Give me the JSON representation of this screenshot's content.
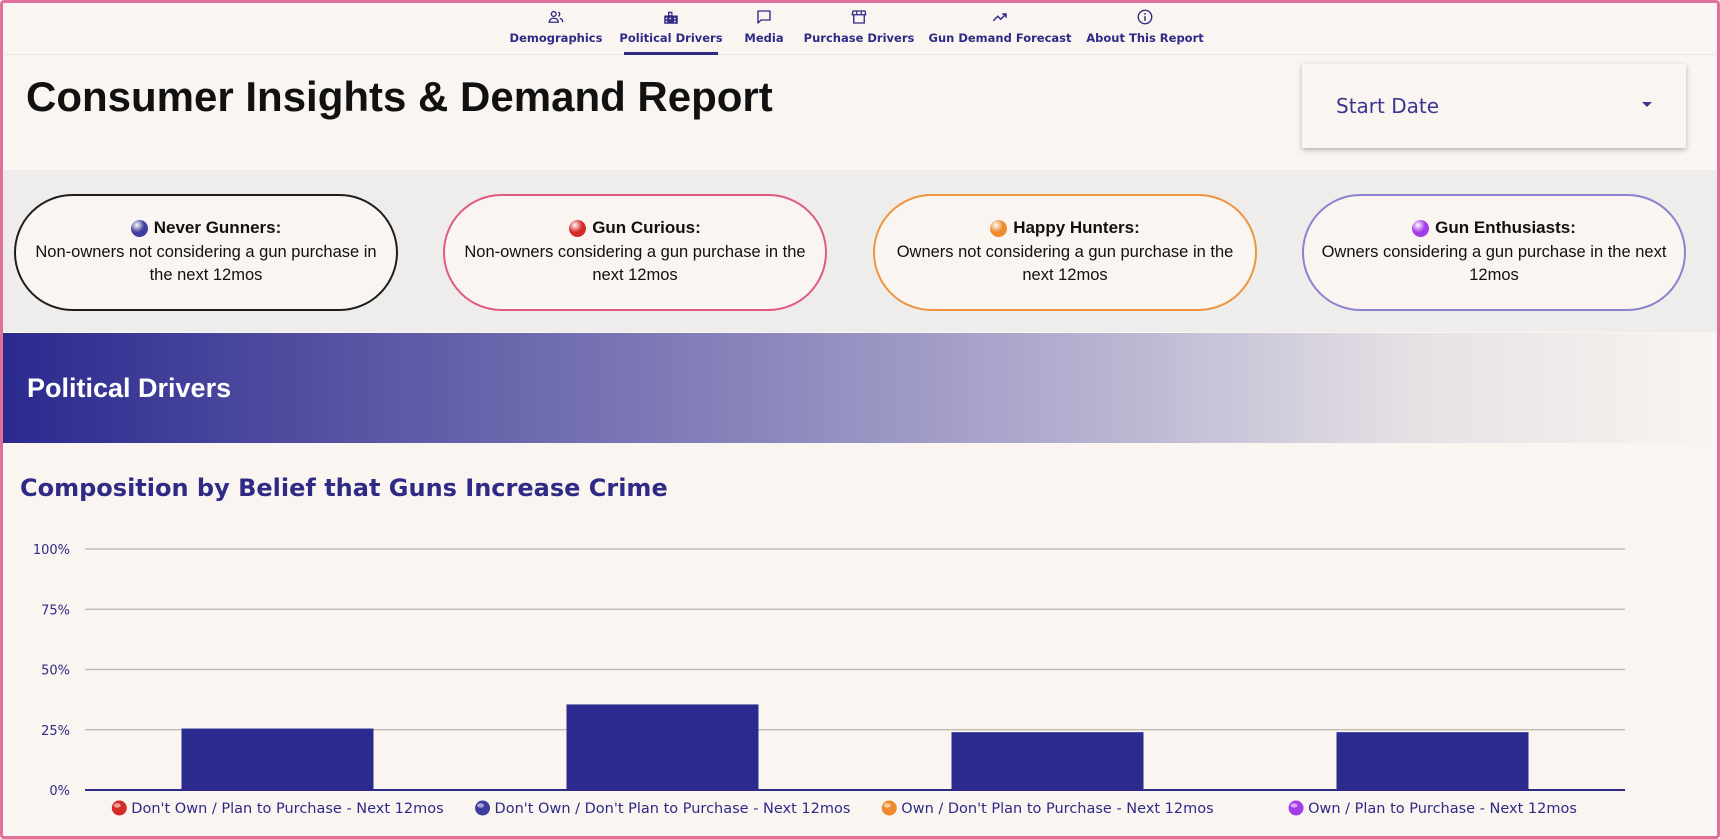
{
  "nav": {
    "tabs": [
      {
        "label": "Demographics",
        "icon": "people-icon",
        "active": false
      },
      {
        "label": "Political Drivers",
        "icon": "building-icon",
        "active": true
      },
      {
        "label": "Media",
        "icon": "chat-icon",
        "active": false
      },
      {
        "label": "Purchase Drivers",
        "icon": "storefront-icon",
        "active": false
      },
      {
        "label": "Gun Demand Forecast",
        "icon": "trending-up-icon",
        "active": false
      },
      {
        "label": "About This Report",
        "icon": "info-icon",
        "active": false
      }
    ],
    "accent": "#2e2a86"
  },
  "header": {
    "title": "Consumer Insights & Demand Report",
    "start_date_label": "Start Date"
  },
  "segments": [
    {
      "name": "Never Gunners:",
      "desc": "Non-owners not considering a gun purchase in the next 12mos",
      "color": "#3f3da0",
      "border": "#1e1e1e"
    },
    {
      "name": "Gun Curious:",
      "desc": "Non-owners considering a gun purchase in the next 12mos",
      "color": "#d42a2a",
      "border": "#e05a86"
    },
    {
      "name": "Happy Hunters:",
      "desc": "Owners not considering a gun purchase in the next 12mos",
      "color": "#ee8a2e",
      "border": "#ef9440"
    },
    {
      "name": "Gun Enthusiasts:",
      "desc": "Owners considering a gun purchase in the next 12mos",
      "color": "#a43be8",
      "border": "#8b82d0"
    }
  ],
  "section": {
    "title": "Political Drivers"
  },
  "chart_data": {
    "type": "bar",
    "title": "Composition by Belief that Guns Increase Crime",
    "categories": [
      "Don't Own / Plan to Purchase - Next 12mos",
      "Don't Own / Don't Plan to Purchase - Next 12mos",
      "Own / Don't Plan to Purchase - Next 12mos",
      "Own / Plan to Purchase - Next 12mos"
    ],
    "category_colors": [
      "#d42a2a",
      "#3f3da0",
      "#ee8a2e",
      "#a43be8"
    ],
    "values": [
      25.5,
      35.5,
      24,
      24
    ],
    "y_ticks": [
      "0%",
      "25%",
      "50%",
      "75%",
      "100%"
    ],
    "ylim": [
      0,
      100
    ],
    "bar_color": "#2b2a8e",
    "grid": true
  }
}
